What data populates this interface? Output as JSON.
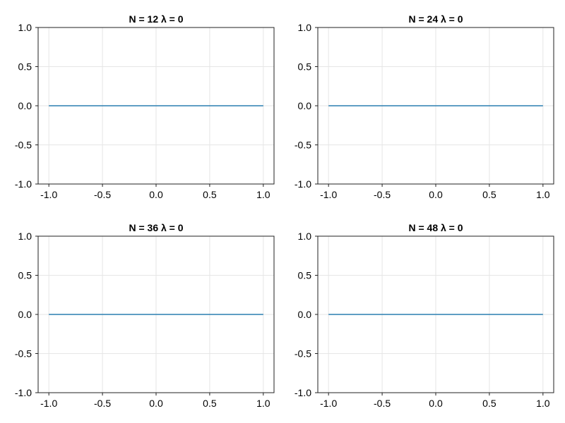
{
  "chart_data": [
    {
      "type": "line",
      "title": "N = 12     λ = 0",
      "xlabel": "",
      "ylabel": "",
      "xlim": [
        -1.1,
        1.1
      ],
      "ylim": [
        -1.0,
        1.0
      ],
      "xticks": [
        -1.0,
        -0.5,
        0.0,
        0.5,
        1.0
      ],
      "xtick_labels": [
        "-1.0",
        "-0.5",
        "0.0",
        "0.5",
        "1.0"
      ],
      "yticks": [
        -1.0,
        -0.5,
        0.0,
        0.5,
        1.0
      ],
      "ytick_labels": [
        "-1.0",
        "-0.5",
        "0.0",
        "0.5",
        "1.0"
      ],
      "grid": true,
      "series": [
        {
          "color": "#2a7fb1",
          "x": [
            -1.0,
            -0.5,
            0.0,
            0.5,
            1.0
          ],
          "y": [
            0.0,
            0.0,
            0.0,
            0.0,
            0.0
          ]
        }
      ]
    },
    {
      "type": "line",
      "title": "N = 24     λ = 0",
      "xlabel": "",
      "ylabel": "",
      "xlim": [
        -1.1,
        1.1
      ],
      "ylim": [
        -1.0,
        1.0
      ],
      "xticks": [
        -1.0,
        -0.5,
        0.0,
        0.5,
        1.0
      ],
      "xtick_labels": [
        "-1.0",
        "-0.5",
        "0.0",
        "0.5",
        "1.0"
      ],
      "yticks": [
        -1.0,
        -0.5,
        0.0,
        0.5,
        1.0
      ],
      "ytick_labels": [
        "-1.0",
        "-0.5",
        "0.0",
        "0.5",
        "1.0"
      ],
      "grid": true,
      "series": [
        {
          "color": "#2a7fb1",
          "x": [
            -1.0,
            -0.5,
            0.0,
            0.5,
            1.0
          ],
          "y": [
            0.0,
            0.0,
            0.0,
            0.0,
            0.0
          ]
        }
      ]
    },
    {
      "type": "line",
      "title": "N = 36     λ = 0",
      "xlabel": "",
      "ylabel": "",
      "xlim": [
        -1.1,
        1.1
      ],
      "ylim": [
        -1.0,
        1.0
      ],
      "xticks": [
        -1.0,
        -0.5,
        0.0,
        0.5,
        1.0
      ],
      "xtick_labels": [
        "-1.0",
        "-0.5",
        "0.0",
        "0.5",
        "1.0"
      ],
      "yticks": [
        -1.0,
        -0.5,
        0.0,
        0.5,
        1.0
      ],
      "ytick_labels": [
        "-1.0",
        "-0.5",
        "0.0",
        "0.5",
        "1.0"
      ],
      "grid": true,
      "series": [
        {
          "color": "#2a7fb1",
          "x": [
            -1.0,
            -0.5,
            0.0,
            0.5,
            1.0
          ],
          "y": [
            0.0,
            0.0,
            0.0,
            0.0,
            0.0
          ]
        }
      ]
    },
    {
      "type": "line",
      "title": "N = 48     λ = 0",
      "xlabel": "",
      "ylabel": "",
      "xlim": [
        -1.1,
        1.1
      ],
      "ylim": [
        -1.0,
        1.0
      ],
      "xticks": [
        -1.0,
        -0.5,
        0.0,
        0.5,
        1.0
      ],
      "xtick_labels": [
        "-1.0",
        "-0.5",
        "0.0",
        "0.5",
        "1.0"
      ],
      "yticks": [
        -1.0,
        -0.5,
        0.0,
        0.5,
        1.0
      ],
      "ytick_labels": [
        "-1.0",
        "-0.5",
        "0.0",
        "0.5",
        "1.0"
      ],
      "grid": true,
      "series": [
        {
          "color": "#2a7fb1",
          "x": [
            -1.0,
            -0.5,
            0.0,
            0.5,
            1.0
          ],
          "y": [
            0.0,
            0.0,
            0.0,
            0.0,
            0.0
          ]
        }
      ]
    }
  ]
}
